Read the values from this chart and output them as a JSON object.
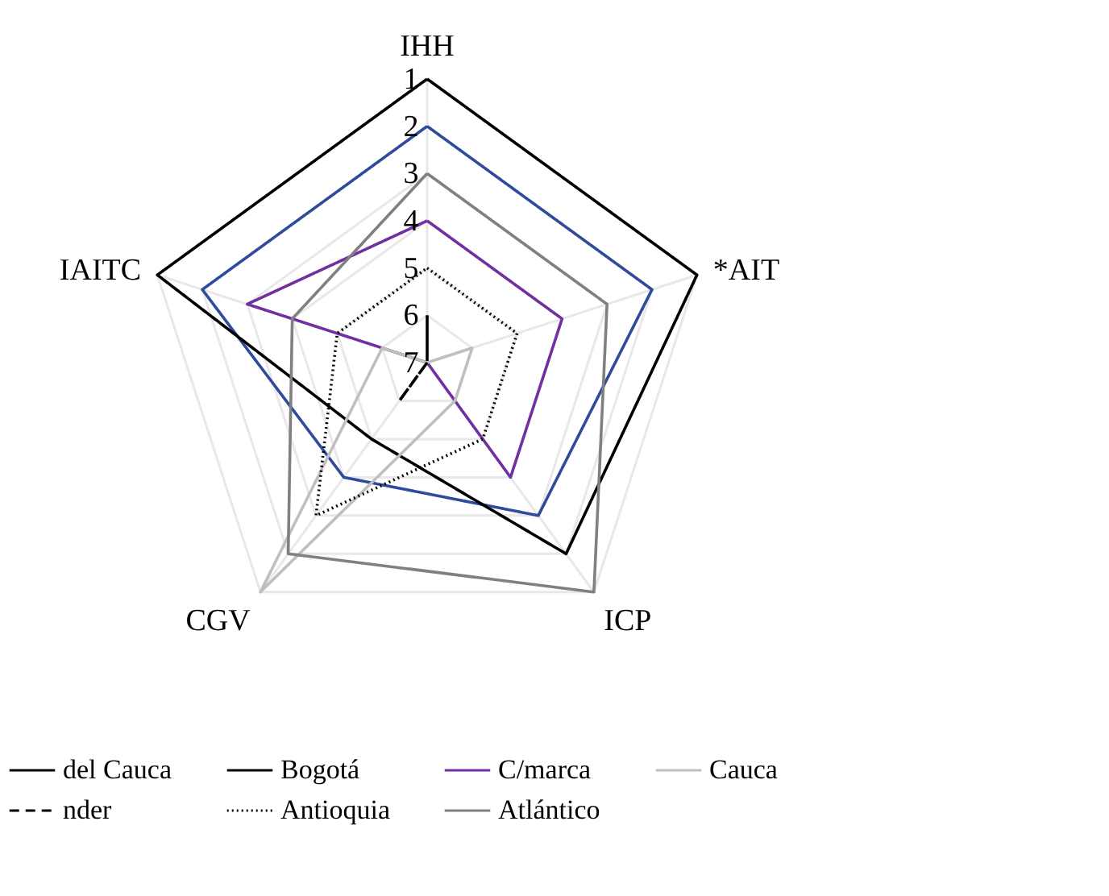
{
  "chart_data": {
    "type": "radar",
    "categories": [
      "IHH",
      "*AIT",
      "ICP",
      "CGV",
      "IAITC"
    ],
    "ylim": [
      7,
      1
    ],
    "yticks": [
      1,
      2,
      3,
      4,
      5,
      6,
      7
    ],
    "grid": true,
    "legend": "bottom",
    "series": [
      {
        "name": "del Cauca",
        "color": "#000000",
        "line_style": "solid",
        "values": [
          6,
          7,
          7,
          7,
          7
        ]
      },
      {
        "name": "Bogotá",
        "color": "#000000",
        "line_style": "solid",
        "values": [
          1,
          1,
          2,
          5,
          1
        ]
      },
      {
        "name": "C/marca",
        "color": "#7030a0",
        "line_style": "solid",
        "values": [
          4,
          4,
          4,
          7,
          3
        ]
      },
      {
        "name": "Cauca",
        "color": "#bfbfbf",
        "line_style": "solid",
        "values": [
          7,
          6,
          6,
          1,
          6
        ]
      },
      {
        "name": "nder",
        "color": "#000000",
        "line_style": "dashed",
        "values": [
          7,
          7,
          7,
          6,
          7
        ]
      },
      {
        "name": "Antioquia",
        "color": "#000000",
        "line_style": "dotted",
        "values": [
          5,
          5,
          5,
          3,
          5
        ]
      },
      {
        "name": "Atlántico",
        "color": "#808080",
        "line_style": "solid",
        "values": [
          3,
          3,
          1,
          2,
          4
        ]
      },
      {
        "color": "#2f4b9c",
        "line_style": "solid",
        "values": [
          2,
          2,
          3,
          4,
          2
        ]
      }
    ]
  }
}
